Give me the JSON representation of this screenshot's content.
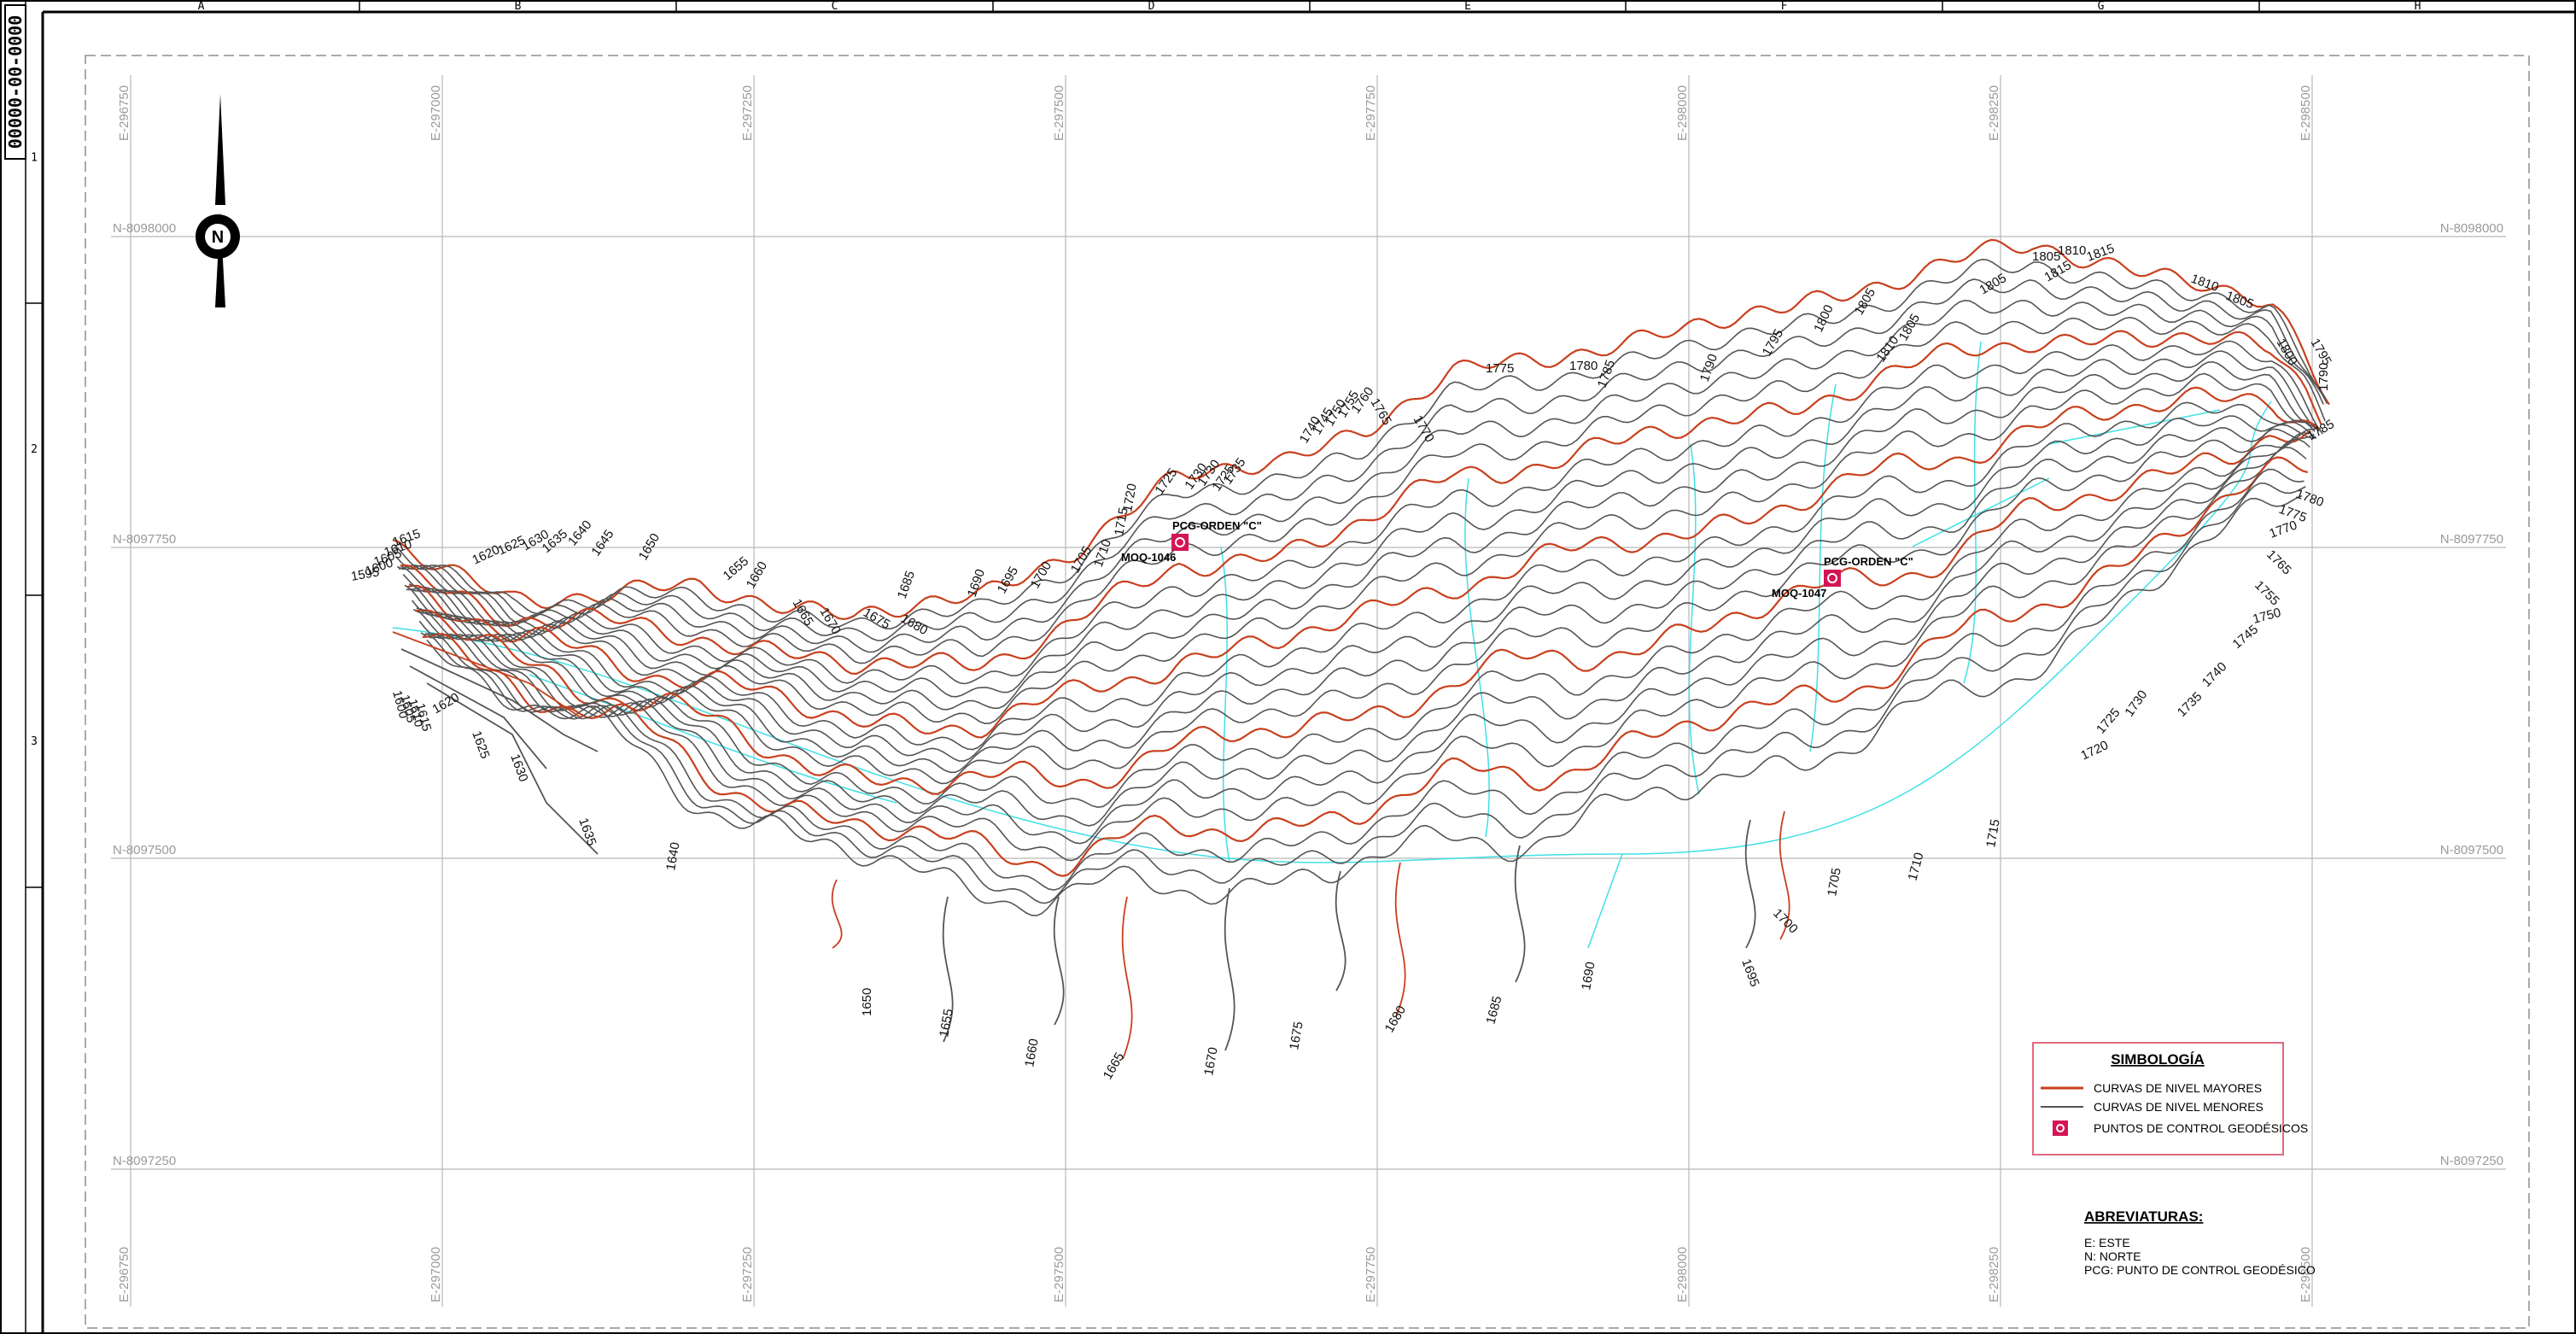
{
  "drawing_code": "00000-00-0000",
  "frame": {
    "columns": [
      "A",
      "B",
      "C",
      "D",
      "E",
      "F",
      "G",
      "H"
    ],
    "rows": [
      "1",
      "2",
      "3"
    ]
  },
  "grid": {
    "easting_labels": [
      "E-296750",
      "E-297000",
      "E-297250",
      "E-297500",
      "E-297750",
      "E-298000",
      "E-298250",
      "E-298500"
    ],
    "northing_labels": [
      "N-8098000",
      "N-8097750",
      "N-8097500",
      "N-8097250"
    ]
  },
  "north_arrow": {
    "icon": "north-arrow-icon",
    "letter": "N"
  },
  "control_points": [
    {
      "order_label": "PCG-ORDEN \"C\"",
      "id_label": "MOQ-1046"
    },
    {
      "order_label": "PCG-ORDEN \"C\"",
      "id_label": "MOQ-1047"
    }
  ],
  "contour_labels": {
    "west": [
      "1615",
      "1610",
      "1605",
      "1600",
      "1595",
      "1620",
      "1625",
      "1630",
      "1635",
      "1640",
      "1645",
      "1650",
      "1600",
      "1605",
      "1610",
      "1615",
      "1620",
      "1625",
      "1630",
      "1635",
      "1640"
    ],
    "north": [
      "1655",
      "1660",
      "1665",
      "1670",
      "1675",
      "1680",
      "1685",
      "1690",
      "1695",
      "1700",
      "1705",
      "1710",
      "1715",
      "1720",
      "1725",
      "1730",
      "1725",
      "1730",
      "1735",
      "1740",
      "1745",
      "1750",
      "1755",
      "1760",
      "1765",
      "1770",
      "1775",
      "1780",
      "1785",
      "1790",
      "1795",
      "1800",
      "1805",
      "1810",
      "1805",
      "1805",
      "1805",
      "1810",
      "1815",
      "1815",
      "1810",
      "1805",
      "1800",
      "1795",
      "1790",
      "1785",
      "1780",
      "1775",
      "1770",
      "1765",
      "1755",
      "1750",
      "1745",
      "1740",
      "1735",
      "1730",
      "1725",
      "1720"
    ],
    "south": [
      "1650",
      "1655",
      "1660",
      "1665",
      "1670",
      "1675",
      "1680",
      "1685",
      "1690",
      "1695",
      "1700",
      "1705",
      "1710",
      "1715"
    ]
  },
  "legend": {
    "title": "SIMBOLOGÍA",
    "items": [
      {
        "label": "CURVAS DE NIVEL MAYORES",
        "color": "#c8401e"
      },
      {
        "label": "CURVAS DE NIVEL MENORES",
        "color": "#555555"
      },
      {
        "label": "PUNTOS DE CONTROL GEODÉSICOS",
        "color": "#d41554"
      }
    ]
  },
  "abbreviations": {
    "title": "ABREVIATURAS:",
    "items": [
      "E:  ESTE",
      "N:  NORTE",
      "PCG: PUNTO DE CONTROL GEODÉSICO"
    ]
  },
  "colors": {
    "major_contour": "#c8401e",
    "minor_contour": "#555555",
    "drainage": "#3fe0e6",
    "grid": "#b8b8b8",
    "control_point": "#d41554"
  }
}
